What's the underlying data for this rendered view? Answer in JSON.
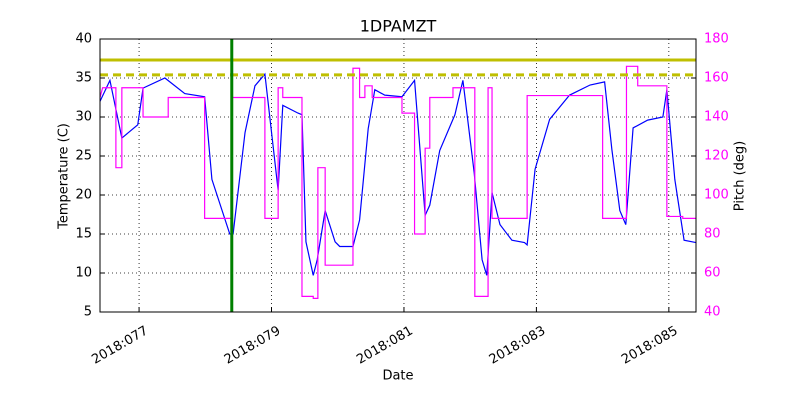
{
  "chart_data": {
    "type": "line",
    "title": "1DPAMZT",
    "xlabel": "Date",
    "ylabel": "Temperature (C)",
    "y2label": "Pitch (deg)",
    "xlim": [
      76.41,
      85.41
    ],
    "xticks": [
      {
        "value": 77,
        "label": "2018:077"
      },
      {
        "value": 79,
        "label": "2018:079"
      },
      {
        "value": 81,
        "label": "2018:081"
      },
      {
        "value": 83,
        "label": "2018:083"
      },
      {
        "value": 85,
        "label": "2018:085"
      }
    ],
    "ylim": [
      5,
      40
    ],
    "yticks": [
      5,
      10,
      15,
      20,
      25,
      30,
      35,
      40
    ],
    "y2lim": [
      40,
      180
    ],
    "y2ticks": [
      40,
      60,
      80,
      100,
      120,
      140,
      160,
      180
    ],
    "y2color": "#ff00ff",
    "grid": true,
    "hlines": [
      {
        "value": 37.3,
        "color": "#bfbf00",
        "style": "solid"
      },
      {
        "value": 35.4,
        "color": "#bfbf00",
        "style": "dashed"
      }
    ],
    "vlines": [
      {
        "value": 78.4,
        "color": "#008000"
      }
    ],
    "series": [
      {
        "color": "#0000ff",
        "x": [
          76.41,
          76.56,
          76.74,
          76.98,
          77.06,
          77.39,
          77.69,
          77.99,
          78.1,
          78.37,
          78.42,
          78.6,
          78.75,
          78.9,
          79.1,
          79.17,
          79.4,
          79.46,
          79.52,
          79.63,
          79.69,
          79.81,
          79.96,
          80.03,
          80.23,
          80.33,
          80.46,
          80.56,
          80.71,
          80.97,
          81.16,
          81.32,
          81.39,
          81.54,
          81.77,
          81.89,
          82.06,
          82.18,
          82.25,
          82.33,
          82.45,
          82.63,
          82.82,
          82.86,
          82.98,
          83.2,
          83.5,
          83.81,
          84.03,
          84.14,
          84.26,
          84.35,
          84.46,
          84.68,
          84.91,
          84.97,
          85.09,
          85.23,
          85.41
        ],
        "values": [
          32,
          34.7,
          27.3,
          29,
          33.7,
          35,
          33,
          32.6,
          22,
          15,
          15,
          28,
          34,
          35.5,
          20.6,
          31.5,
          30.5,
          30.3,
          14,
          9.7,
          11.7,
          18,
          14,
          13.4,
          13.4,
          16.8,
          28.5,
          33.5,
          32.8,
          32.6,
          34.7,
          17.4,
          18.7,
          25.7,
          30.3,
          34.7,
          22.9,
          11.7,
          9.7,
          20.3,
          16.2,
          14.2,
          13.9,
          13.6,
          23.3,
          29.7,
          32.8,
          34.1,
          34.5,
          25.8,
          18,
          16.2,
          28.6,
          29.6,
          30,
          33.5,
          22,
          14.2,
          13.9
        ]
      },
      {
        "color": "#ff00ff",
        "axis": "y2",
        "x": [
          76.41,
          76.45,
          76.65,
          76.65,
          76.74,
          76.74,
          77.06,
          77.06,
          77.44,
          77.44,
          77.99,
          77.99,
          78.4,
          78.4,
          78.9,
          78.9,
          79.1,
          79.1,
          79.17,
          79.17,
          79.46,
          79.46,
          79.63,
          79.63,
          79.7,
          79.7,
          79.81,
          79.81,
          80.23,
          80.23,
          80.33,
          80.33,
          80.41,
          80.41,
          80.52,
          80.52,
          80.97,
          80.97,
          81.16,
          81.16,
          81.32,
          81.32,
          81.39,
          81.39,
          81.74,
          81.74,
          82.07,
          82.07,
          82.27,
          82.27,
          82.33,
          82.33,
          82.86,
          82.86,
          84.0,
          84.0,
          84.36,
          84.36,
          84.53,
          84.53,
          84.97,
          84.97,
          85.21,
          85.21,
          85.41
        ],
        "values": [
          150,
          155,
          155,
          114,
          114,
          155,
          155,
          140,
          140,
          150,
          150,
          88,
          88,
          150,
          150,
          88,
          88,
          155,
          155,
          150,
          150,
          48,
          48,
          47,
          47,
          114,
          114,
          64,
          64,
          165,
          165,
          150,
          150,
          156,
          156,
          150,
          150,
          142,
          142,
          80,
          80,
          124,
          124,
          150,
          150,
          155,
          155,
          48,
          48,
          155,
          155,
          88,
          88,
          151,
          151,
          88,
          88,
          166,
          166,
          156,
          156,
          89,
          89,
          88,
          88
        ]
      }
    ]
  }
}
